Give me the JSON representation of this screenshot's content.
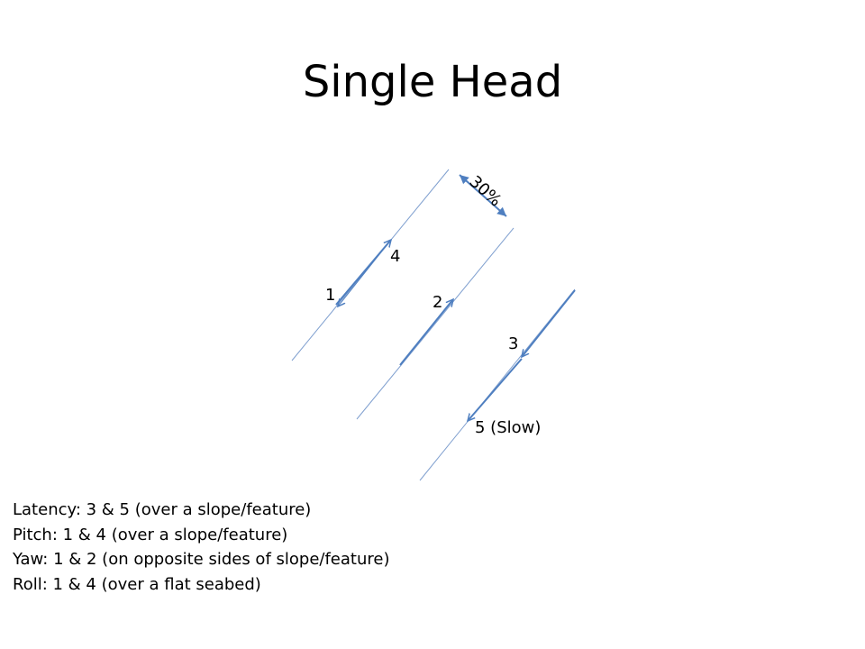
{
  "title": "Single Head",
  "diagram": {
    "width_label": "30%",
    "line_labels": {
      "one": "1",
      "two": "2",
      "three": "3",
      "four": "4",
      "five": "5 (Slow)"
    },
    "colors": {
      "survey_line": "#7f9fcf",
      "run_arrow": "#4f7fc0",
      "label": "#000000"
    }
  },
  "notes": [
    "Latency: 3 & 5 (over a slope/feature)",
    "Pitch: 1 & 4 (over a slope/feature)",
    "Yaw: 1 & 2 (on opposite sides of slope/feature)",
    "Roll: 1 & 4 (over a flat seabed)"
  ]
}
